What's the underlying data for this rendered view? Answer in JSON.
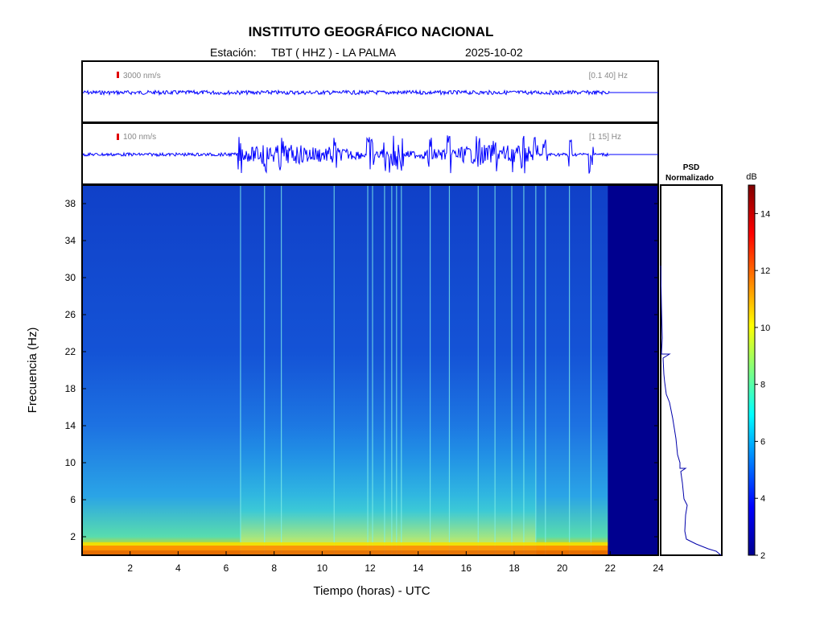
{
  "header": {
    "title": "INSTITUTO GEOGRÁFICO NACIONAL",
    "station_prefix": "Estación:",
    "station": "TBT ( HHZ ) - LA PALMA",
    "date": "2025-10-02"
  },
  "trace1": {
    "scale_label": "3000 nm/s",
    "filter_label": "[0.1 40] Hz"
  },
  "trace2": {
    "scale_label": "100 nm/s",
    "filter_label": "[1 15] Hz"
  },
  "psd": {
    "title_line1": "PSD",
    "title_line2": "Normalizado"
  },
  "colorbar": {
    "unit": "dB",
    "ticks": [
      2,
      4,
      6,
      8,
      10,
      12,
      14
    ],
    "range": [
      2,
      15
    ],
    "colors": [
      "#00008f",
      "#0000ff",
      "#00ffff",
      "#ffff00",
      "#ff0000",
      "#800000"
    ]
  },
  "chart_data": {
    "type": "heatmap",
    "title": "INSTITUTO GEOGRÁFICO NACIONAL",
    "xlabel": "Tiempo (horas) - UTC",
    "ylabel": "Frecuencia  (Hz)",
    "xlim": [
      0,
      24
    ],
    "ylim": [
      0,
      40
    ],
    "xticks": [
      2,
      4,
      6,
      8,
      10,
      12,
      14,
      16,
      18,
      20,
      22,
      24
    ],
    "yticks": [
      2,
      6,
      10,
      14,
      18,
      22,
      26,
      30,
      34,
      38
    ],
    "data_end_hour": 21.9,
    "noisy_period_hours": [
      6.6,
      18.9
    ],
    "vertical_event_lines_hours": [
      6.6,
      7.6,
      8.3,
      10.5,
      11.9,
      12.1,
      12.6,
      12.9,
      13.1,
      13.3,
      14.5,
      15.3,
      16.5,
      17.2,
      17.9,
      18.4,
      18.9,
      19.3,
      20.3,
      21.2
    ]
  }
}
